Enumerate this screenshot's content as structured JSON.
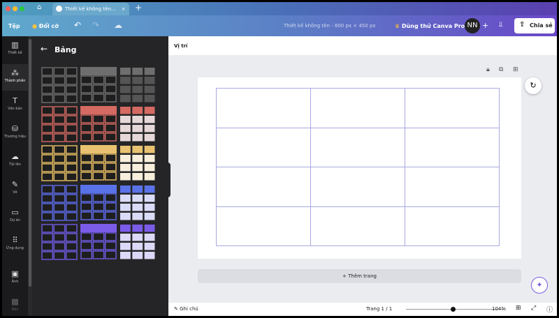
{
  "tab": {
    "title": "Thiết kế không tên..."
  },
  "toolbar": {
    "file": "Tệp",
    "resize": "Đổi cỡ",
    "doc_title": "Thiết kế không tên - 800 px × 450 px",
    "pro": "Dùng thử Canva Pro",
    "avatar": "NN",
    "share": "Chia sẻ"
  },
  "rail": [
    {
      "icon": "layout-icon",
      "glyph": "▥",
      "label": "Thiết kế"
    },
    {
      "icon": "elements-icon",
      "glyph": "⁂",
      "label": "Thành phần",
      "active": true
    },
    {
      "icon": "text-icon",
      "glyph": "T",
      "label": "Văn bản"
    },
    {
      "icon": "brand-icon",
      "glyph": "⛁",
      "label": "Thương hiệu"
    },
    {
      "icon": "upload-icon",
      "glyph": "☁",
      "label": "Tải lên"
    },
    {
      "icon": "draw-icon",
      "glyph": "✎",
      "label": "Vẽ"
    },
    {
      "icon": "folder-icon",
      "glyph": "▭",
      "label": "Dự án"
    },
    {
      "icon": "apps-icon",
      "glyph": "⠿",
      "label": "Ứng dụng"
    },
    {
      "icon": "photo-icon",
      "glyph": "▣",
      "label": "Ảnh"
    },
    {
      "icon": "background-icon",
      "glyph": "▩",
      "label": "Nền"
    }
  ],
  "panel": {
    "title": "Bảng",
    "themes": [
      {
        "line": "#6a6a6a",
        "head": "#6e6e6e",
        "body": "#555555"
      },
      {
        "line": "#c8645e",
        "head": "#d46a62",
        "body": "#e6d8d8"
      },
      {
        "line": "#e0b860",
        "head": "#e8c270",
        "body": "#f7eedc"
      },
      {
        "line": "#5a68e0",
        "head": "#5a72e8",
        "body": "#dadcf7"
      },
      {
        "line": "#6a58d8",
        "head": "#7b5ce8",
        "body": "#dcd8f7"
      }
    ]
  },
  "canvas": {
    "position_label": "Vị trí",
    "add_page": "+ Thêm trang",
    "rows": 4,
    "cols": 3
  },
  "bottom": {
    "notes": "Ghi chú",
    "page": "Trang 1 / 1",
    "zoom": "104%",
    "zoom_value": 104
  }
}
